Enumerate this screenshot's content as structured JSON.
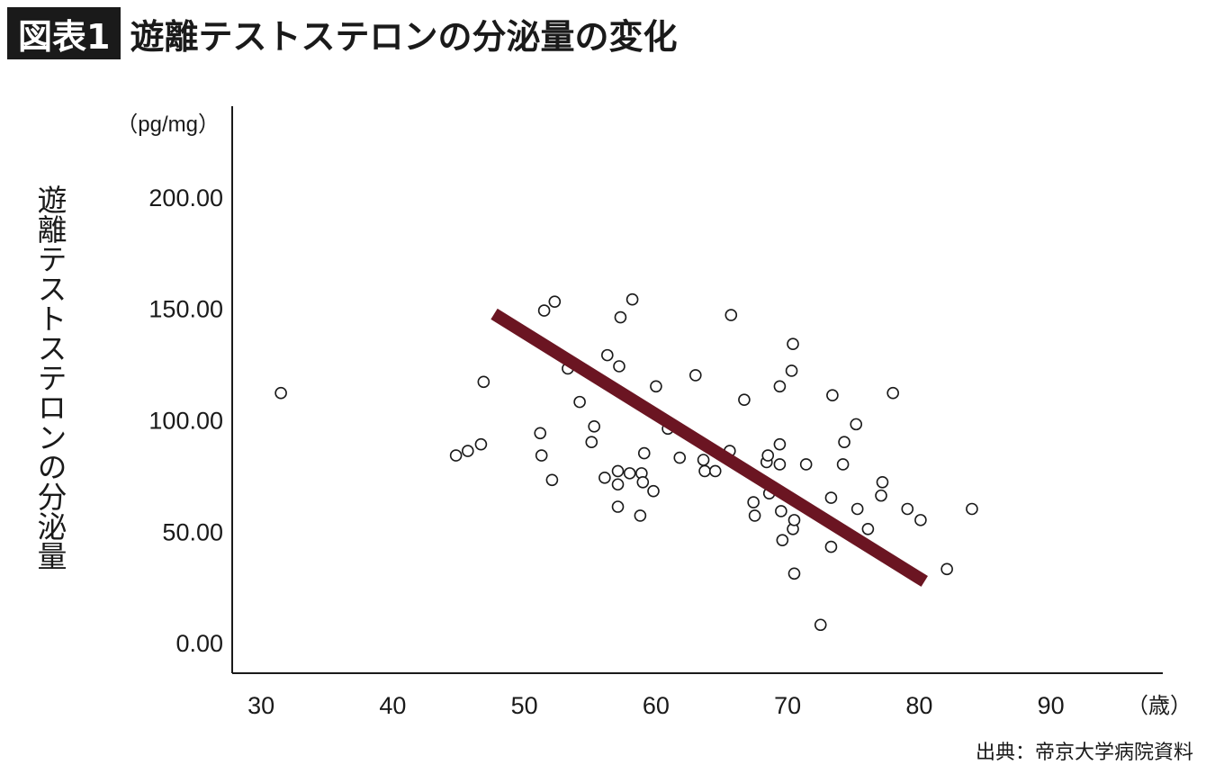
{
  "header": {
    "badge": "図表1",
    "title": "遊離テストステロンの分泌量の変化"
  },
  "source": "出典：帝京大学病院資料",
  "chart_data": {
    "type": "scatter",
    "ylabel": "遊離テストステロンの分泌量",
    "y_unit": "（pg/mg）",
    "x_unit": "（歳）",
    "xlim": [
      27.8,
      98.5
    ],
    "ylim": [
      -13.7,
      240.7
    ],
    "x_ticks": [
      30,
      40,
      50,
      60,
      70,
      80,
      90
    ],
    "x_tick_labels": [
      "30",
      "40",
      "50",
      "60",
      "70",
      "80",
      "90"
    ],
    "y_ticks": [
      0,
      50,
      100,
      150,
      200
    ],
    "y_tick_labels": [
      "0.00",
      "50.00",
      "100.00",
      "150.00",
      "200.00"
    ],
    "trend_line": {
      "x": [
        47.7,
        80.4
      ],
      "y": [
        147.5,
        27.5
      ],
      "color": "#6b1522"
    },
    "marker": {
      "fill": "#ffffff",
      "stroke": "#1a1a1a"
    },
    "points": [
      [
        31.5,
        112
      ],
      [
        44.8,
        84
      ],
      [
        45.7,
        86
      ],
      [
        46.7,
        89
      ],
      [
        46.9,
        117
      ],
      [
        51.2,
        94
      ],
      [
        51.3,
        84
      ],
      [
        51.5,
        149
      ],
      [
        52.1,
        73
      ],
      [
        52.3,
        153
      ],
      [
        53.3,
        123
      ],
      [
        54.2,
        108
      ],
      [
        55.1,
        90
      ],
      [
        55.3,
        97
      ],
      [
        56.1,
        74
      ],
      [
        56.3,
        129
      ],
      [
        57.1,
        77
      ],
      [
        57.1,
        71
      ],
      [
        57.1,
        61
      ],
      [
        57.2,
        124
      ],
      [
        57.3,
        146
      ],
      [
        58.0,
        76
      ],
      [
        58.2,
        154
      ],
      [
        58.8,
        57
      ],
      [
        58.9,
        76
      ],
      [
        59.0,
        72
      ],
      [
        59.1,
        85
      ],
      [
        59.8,
        68
      ],
      [
        60.0,
        115
      ],
      [
        60.9,
        96
      ],
      [
        61.8,
        83
      ],
      [
        63.0,
        120
      ],
      [
        63.6,
        82
      ],
      [
        63.7,
        77
      ],
      [
        64.5,
        77
      ],
      [
        65.6,
        86
      ],
      [
        65.7,
        147
      ],
      [
        66.7,
        109
      ],
      [
        67.4,
        63
      ],
      [
        67.5,
        57
      ],
      [
        68.4,
        81
      ],
      [
        68.5,
        84
      ],
      [
        68.6,
        67
      ],
      [
        69.4,
        89
      ],
      [
        69.4,
        80
      ],
      [
        69.5,
        59
      ],
      [
        69.6,
        46
      ],
      [
        69.4,
        115
      ],
      [
        70.3,
        122
      ],
      [
        70.4,
        134
      ],
      [
        70.4,
        51
      ],
      [
        70.5,
        55
      ],
      [
        70.5,
        31
      ],
      [
        71.4,
        80
      ],
      [
        72.5,
        8
      ],
      [
        73.3,
        65
      ],
      [
        73.3,
        43
      ],
      [
        73.4,
        111
      ],
      [
        74.2,
        80
      ],
      [
        74.3,
        90
      ],
      [
        75.2,
        98
      ],
      [
        75.3,
        60
      ],
      [
        76.1,
        51
      ],
      [
        77.1,
        66
      ],
      [
        77.2,
        72
      ],
      [
        78.0,
        112
      ],
      [
        79.1,
        60
      ],
      [
        80.1,
        55
      ],
      [
        82.1,
        33
      ],
      [
        84.0,
        60
      ]
    ]
  }
}
